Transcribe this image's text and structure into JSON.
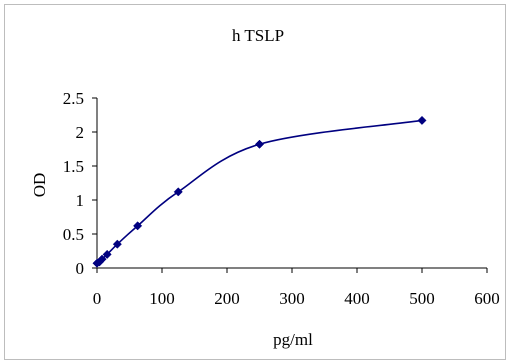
{
  "chart_data": {
    "type": "line",
    "title": "h TSLP",
    "xlabel": "pg/ml",
    "ylabel": "OD",
    "xlim": [
      0,
      600
    ],
    "ylim": [
      0,
      2.5
    ],
    "x_ticks": [
      0,
      100,
      200,
      300,
      400,
      500,
      600
    ],
    "y_ticks": [
      0,
      0.5,
      1,
      1.5,
      2,
      2.5
    ],
    "x_tick_labels": [
      "0",
      "100",
      "200",
      "300",
      "400",
      "500",
      "600"
    ],
    "y_tick_labels": [
      "0",
      "0.5",
      "1",
      "1.5",
      "2",
      "2.5"
    ],
    "grid": false,
    "legend": "none",
    "series": [
      {
        "marker": "diamond",
        "color": "#000080",
        "x": [
          0,
          3.9,
          7.8,
          15.6,
          31.25,
          62.5,
          125,
          250,
          500
        ],
        "y": [
          0.07,
          0.09,
          0.13,
          0.2,
          0.35,
          0.62,
          1.12,
          1.82,
          2.17
        ]
      }
    ]
  }
}
